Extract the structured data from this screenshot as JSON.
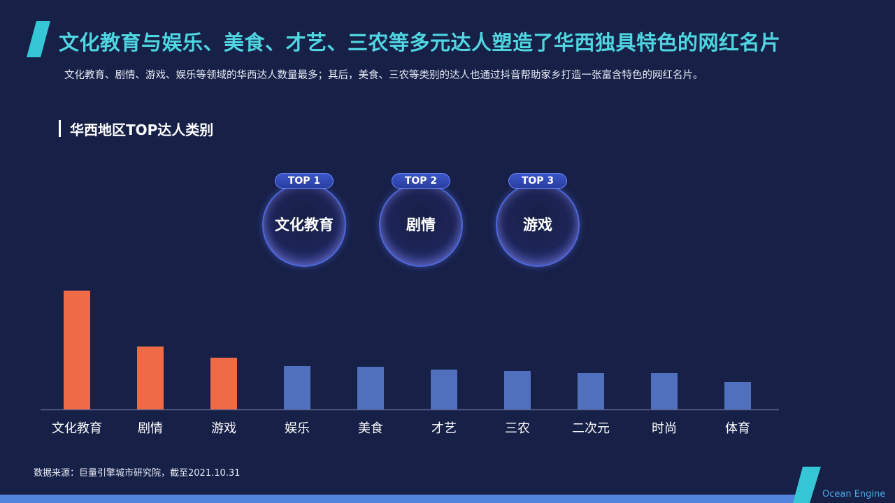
{
  "header": {
    "title": "文化教育与娱乐、美食、才艺、三农等多元达人塑造了华西独具特色的网红名片",
    "subtitle": "文化教育、剧情、游戏、娱乐等领域的华西达人数量最多；其后，美食、三农等类别的达人也通过抖音帮助家乡打造一张富含特色的网红名片。"
  },
  "section": {
    "title": "华西地区TOP达人类别"
  },
  "top_cards": [
    {
      "badge": "TOP 1",
      "label": "文化教育"
    },
    {
      "badge": "TOP 2",
      "label": "剧情"
    },
    {
      "badge": "TOP 3",
      "label": "游戏"
    }
  ],
  "chart_data": {
    "type": "bar",
    "categories": [
      "文化教育",
      "剧情",
      "游戏",
      "娱乐",
      "美食",
      "才艺",
      "三农",
      "二次元",
      "时尚",
      "体育"
    ],
    "values": [
      170,
      90,
      74,
      62,
      61,
      57,
      55,
      52,
      52,
      39
    ],
    "colors": {
      "highlight": "#ee6b46",
      "normal": "#5070be"
    },
    "highlight_count": 3,
    "ylim": [
      0,
      200
    ],
    "grid": false
  },
  "footer": {
    "source": "数据来源：巨量引擎城市研究院，截至2021.10.31",
    "brand": "Ocean Engine"
  },
  "colors": {
    "background": "#172047",
    "title": "#4fd6e1",
    "axis": "#5a6391"
  }
}
